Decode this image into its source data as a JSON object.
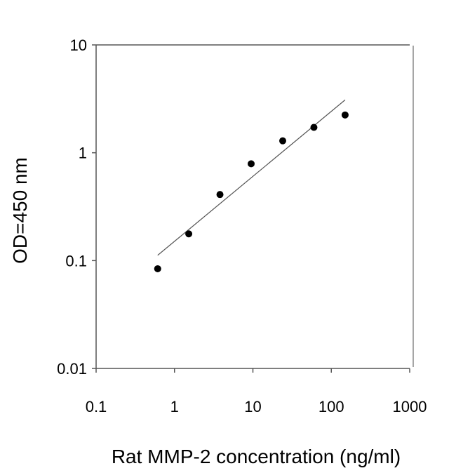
{
  "chart_data": {
    "type": "scatter",
    "title": "",
    "xlabel": "Rat MMP-2 concentration (ng/ml)",
    "ylabel": "OD=450 nm",
    "x_scale": "log",
    "y_scale": "log",
    "xlim": [
      0.1,
      1000
    ],
    "ylim": [
      0.01,
      10
    ],
    "x_ticks": [
      0.1,
      1,
      10,
      100,
      1000
    ],
    "x_tick_labels": [
      "0.1",
      "1",
      "10",
      "100",
      "1000"
    ],
    "y_ticks": [
      0.01,
      0.1,
      1,
      10
    ],
    "y_tick_labels": [
      "0.01",
      "0.1",
      "1",
      "10"
    ],
    "grid": false,
    "points": {
      "x": [
        0.61,
        1.52,
        3.8,
        9.5,
        24,
        60,
        150
      ],
      "y": [
        0.084,
        0.177,
        0.41,
        0.79,
        1.29,
        1.72,
        2.24
      ]
    },
    "fit_line": {
      "x": [
        0.61,
        150
      ],
      "y": [
        0.112,
        3.09
      ]
    },
    "colors": {
      "points": "#000000",
      "fit_line": "#555555",
      "axes": "#555555"
    }
  }
}
